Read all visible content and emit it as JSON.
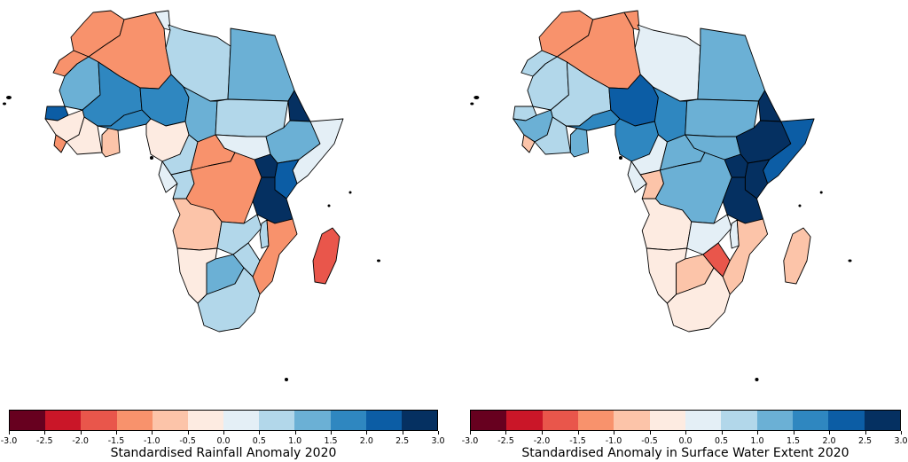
{
  "colors": {
    "bins": [
      "#67001f",
      "#ca1628",
      "#e9564b",
      "#f8926c",
      "#fcc4a9",
      "#fdebe1",
      "#e4eff6",
      "#b2d7ea",
      "#6bb0d5",
      "#2f87c0",
      "#0c5da5",
      "#053061"
    ],
    "border": "#000000",
    "background": "#ffffff"
  },
  "colorbar": {
    "ticks": [
      "-3.0",
      "-2.5",
      "-2.0",
      "-1.5",
      "-1.0",
      "-0.5",
      "0.0",
      "0.5",
      "1.0",
      "1.5",
      "2.0",
      "2.5",
      "3.0"
    ],
    "range": [
      -3.0,
      3.0
    ]
  },
  "maps": [
    {
      "title": "Standardised Rainfall Anomaly 2020",
      "regions": [
        {
          "name": "Morocco",
          "value": -1.2
        },
        {
          "name": "Western Sahara",
          "value": -1.2
        },
        {
          "name": "Algeria",
          "value": -1.3
        },
        {
          "name": "Tunisia",
          "value": 0.3
        },
        {
          "name": "Libya",
          "value": 0.6
        },
        {
          "name": "Egypt",
          "value": 1.2
        },
        {
          "name": "Mauritania",
          "value": 1.2
        },
        {
          "name": "Mali",
          "value": 1.6
        },
        {
          "name": "Niger",
          "value": 1.7
        },
        {
          "name": "Chad",
          "value": 1.3
        },
        {
          "name": "Sudan",
          "value": 0.7
        },
        {
          "name": "South Sudan",
          "value": 0.3
        },
        {
          "name": "Eritrea",
          "value": 2.8
        },
        {
          "name": "Ethiopia",
          "value": 1.3
        },
        {
          "name": "Somalia",
          "value": 0.3
        },
        {
          "name": "Senegal",
          "value": 2.2
        },
        {
          "name": "Guinea",
          "value": -0.3
        },
        {
          "name": "Sierra Leone",
          "value": -1.2
        },
        {
          "name": "Côte d'Ivoire",
          "value": -0.2
        },
        {
          "name": "Ghana",
          "value": -0.8
        },
        {
          "name": "Burkina Faso",
          "value": 1.5
        },
        {
          "name": "Nigeria",
          "value": -0.1
        },
        {
          "name": "Cameroon",
          "value": 0.8
        },
        {
          "name": "Central African Republic",
          "value": -1.2
        },
        {
          "name": "Gabon",
          "value": 0.3
        },
        {
          "name": "Congo",
          "value": 0.6
        },
        {
          "name": "DR Congo",
          "value": -1.1
        },
        {
          "name": "Uganda",
          "value": 2.6
        },
        {
          "name": "Kenya",
          "value": 2.1
        },
        {
          "name": "Tanzania",
          "value": 2.9
        },
        {
          "name": "Angola",
          "value": -0.7
        },
        {
          "name": "Zambia",
          "value": 0.6
        },
        {
          "name": "Malawi",
          "value": 0.8
        },
        {
          "name": "Mozambique",
          "value": -1.1
        },
        {
          "name": "Namibia",
          "value": -0.4
        },
        {
          "name": "Botswana",
          "value": 1.1
        },
        {
          "name": "Zimbabwe",
          "value": 0.6
        },
        {
          "name": "South Africa",
          "value": 0.7
        },
        {
          "name": "Madagascar",
          "value": -1.6
        }
      ]
    },
    {
      "title": "Standardised Anomaly in Surface Water Extent 2020",
      "regions": [
        {
          "name": "Morocco",
          "value": -1.1
        },
        {
          "name": "Western Sahara",
          "value": 0.6
        },
        {
          "name": "Algeria",
          "value": -1.1
        },
        {
          "name": "Tunisia",
          "value": -1.3
        },
        {
          "name": "Libya",
          "value": 0.3
        },
        {
          "name": "Egypt",
          "value": 1.3
        },
        {
          "name": "Mauritania",
          "value": 0.6
        },
        {
          "name": "Mali",
          "value": 0.7
        },
        {
          "name": "Niger",
          "value": 2.3
        },
        {
          "name": "Chad",
          "value": 1.7
        },
        {
          "name": "Sudan",
          "value": 1.3
        },
        {
          "name": "South Sudan",
          "value": 1.2
        },
        {
          "name": "Eritrea",
          "value": 2.6
        },
        {
          "name": "Ethiopia",
          "value": 2.9
        },
        {
          "name": "Somalia",
          "value": 2.3
        },
        {
          "name": "Senegal",
          "value": 0.6
        },
        {
          "name": "Guinea",
          "value": 1.1
        },
        {
          "name": "Sierra Leone",
          "value": -0.7
        },
        {
          "name": "Côte d'Ivoire",
          "value": 0.7
        },
        {
          "name": "Ghana",
          "value": 1.2
        },
        {
          "name": "Burkina Faso",
          "value": 1.6
        },
        {
          "name": "Nigeria",
          "value": 1.7
        },
        {
          "name": "Cameroon",
          "value": 0.3
        },
        {
          "name": "Central African Republic",
          "value": 1.2
        },
        {
          "name": "Gabon",
          "value": 0.3
        },
        {
          "name": "Congo",
          "value": -0.8
        },
        {
          "name": "DR Congo",
          "value": 1.2
        },
        {
          "name": "Uganda",
          "value": 2.8
        },
        {
          "name": "Kenya",
          "value": 2.9
        },
        {
          "name": "Tanzania",
          "value": 2.9
        },
        {
          "name": "Angola",
          "value": -0.4
        },
        {
          "name": "Zambia",
          "value": 0.4
        },
        {
          "name": "Malawi",
          "value": 0.3
        },
        {
          "name": "Mozambique",
          "value": -0.7
        },
        {
          "name": "Namibia",
          "value": -0.4
        },
        {
          "name": "Botswana",
          "value": -0.9
        },
        {
          "name": "Zimbabwe",
          "value": -1.7
        },
        {
          "name": "South Africa",
          "value": -0.4
        },
        {
          "name": "Madagascar",
          "value": -0.6
        }
      ]
    }
  ]
}
